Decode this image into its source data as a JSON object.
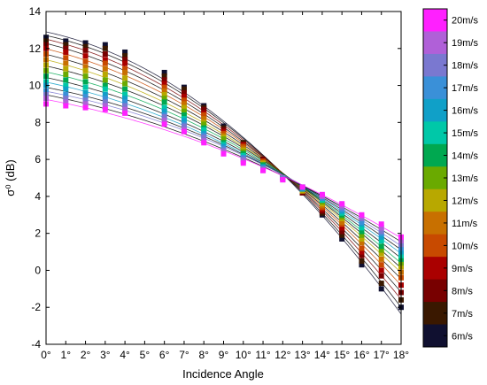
{
  "chart_data": {
    "type": "scatter",
    "title": "",
    "xlabel": "Incidence Angle",
    "ylabel": "σ⁰ (dB)",
    "xlim": [
      0,
      18
    ],
    "ylim": [
      -4,
      14
    ],
    "x_ticks": [
      "0°",
      "1°",
      "2°",
      "3°",
      "4°",
      "5°",
      "6°",
      "7°",
      "8°",
      "9°",
      "10°",
      "11°",
      "12°",
      "13°",
      "14°",
      "15°",
      "16°",
      "17°",
      "18°"
    ],
    "y_ticks": [
      "-4",
      "-2",
      "0",
      "2",
      "4",
      "6",
      "8",
      "10",
      "12",
      "14"
    ],
    "grid": false,
    "legend_position": "right colorbar",
    "x": [
      0,
      1,
      2,
      3,
      4,
      6,
      7,
      8,
      9,
      10,
      11,
      12,
      13,
      14,
      15,
      16,
      17,
      18
    ],
    "series": [
      {
        "name": "6m/s",
        "color": "#101030",
        "values": [
          12.6,
          12.4,
          12.3,
          12.2,
          11.8,
          10.7,
          9.9,
          8.9,
          7.8,
          6.9,
          6.0,
          5.0,
          4.2,
          3.0,
          1.7,
          0.3,
          -1.0,
          -2.0
        ]
      },
      {
        "name": "7m/s",
        "color": "#3a1800",
        "values": [
          12.4,
          12.2,
          12.1,
          12.0,
          11.6,
          10.5,
          9.8,
          8.8,
          7.7,
          6.9,
          6.0,
          5.0,
          4.2,
          3.1,
          1.9,
          0.5,
          -0.7,
          -1.6
        ]
      },
      {
        "name": "8m/s",
        "color": "#780000",
        "values": [
          12.2,
          12.0,
          11.9,
          11.7,
          11.4,
          10.3,
          9.6,
          8.7,
          7.6,
          6.8,
          6.0,
          5.0,
          4.2,
          3.2,
          2.1,
          0.8,
          -0.3,
          -1.2
        ]
      },
      {
        "name": "9m/s",
        "color": "#aa0000",
        "values": [
          12.0,
          11.8,
          11.6,
          11.4,
          11.2,
          10.1,
          9.4,
          8.5,
          7.5,
          6.8,
          5.9,
          5.0,
          4.3,
          3.3,
          2.3,
          1.0,
          0.0,
          -0.8
        ]
      },
      {
        "name": "10m/s",
        "color": "#c84a00",
        "values": [
          11.7,
          11.5,
          11.3,
          11.2,
          10.9,
          9.9,
          9.2,
          8.4,
          7.4,
          6.7,
          5.9,
          5.0,
          4.3,
          3.4,
          2.5,
          1.2,
          0.3,
          -0.4
        ]
      },
      {
        "name": "11m/s",
        "color": "#c87000",
        "values": [
          11.4,
          11.2,
          11.0,
          10.9,
          10.7,
          9.7,
          9.0,
          8.2,
          7.3,
          6.6,
          5.8,
          5.0,
          4.3,
          3.5,
          2.6,
          1.5,
          0.6,
          -0.1
        ]
      },
      {
        "name": "12m/s",
        "color": "#b8a800",
        "values": [
          11.1,
          10.9,
          10.8,
          10.6,
          10.4,
          9.5,
          8.8,
          8.0,
          7.2,
          6.5,
          5.8,
          5.0,
          4.3,
          3.6,
          2.8,
          1.7,
          0.9,
          0.2
        ]
      },
      {
        "name": "13m/s",
        "color": "#6aaa00",
        "values": [
          10.8,
          10.6,
          10.5,
          10.3,
          10.1,
          9.3,
          8.6,
          7.9,
          7.1,
          6.4,
          5.7,
          5.0,
          4.4,
          3.7,
          2.9,
          1.9,
          1.1,
          0.4
        ]
      },
      {
        "name": "14m/s",
        "color": "#00a850",
        "values": [
          10.5,
          10.3,
          10.2,
          10.0,
          9.8,
          9.1,
          8.4,
          7.7,
          6.9,
          6.3,
          5.7,
          5.0,
          4.4,
          3.8,
          3.0,
          2.1,
          1.3,
          0.6
        ]
      },
      {
        "name": "15m/s",
        "color": "#00c8a8",
        "values": [
          10.2,
          10.0,
          9.9,
          9.8,
          9.5,
          8.8,
          8.2,
          7.6,
          6.8,
          6.2,
          5.6,
          5.0,
          4.4,
          3.8,
          3.1,
          2.3,
          1.6,
          0.8
        ]
      },
      {
        "name": "16m/s",
        "color": "#10a0c8",
        "values": [
          10.0,
          9.8,
          9.6,
          9.5,
          9.3,
          8.6,
          8.1,
          7.4,
          6.7,
          6.1,
          5.6,
          5.0,
          4.4,
          3.9,
          3.2,
          2.5,
          1.8,
          1.0
        ]
      },
      {
        "name": "17m/s",
        "color": "#3a90d8",
        "values": [
          9.7,
          9.5,
          9.4,
          9.3,
          9.1,
          8.4,
          7.9,
          7.3,
          6.6,
          6.1,
          5.5,
          5.0,
          4.5,
          3.9,
          3.3,
          2.6,
          2.0,
          1.2
        ]
      },
      {
        "name": "18m/s",
        "color": "#7a78d0",
        "values": [
          9.5,
          9.3,
          9.2,
          9.1,
          8.9,
          8.3,
          7.8,
          7.2,
          6.5,
          6.0,
          5.5,
          5.0,
          4.5,
          4.0,
          3.4,
          2.8,
          2.1,
          1.4
        ]
      },
      {
        "name": "19m/s",
        "color": "#b060d8",
        "values": [
          9.3,
          9.1,
          9.0,
          8.9,
          8.7,
          8.1,
          7.6,
          7.0,
          6.4,
          5.9,
          5.4,
          4.9,
          4.5,
          4.0,
          3.5,
          2.9,
          2.3,
          1.6
        ]
      },
      {
        "name": "20m/s",
        "color": "#ff20ff",
        "values": [
          9.0,
          8.9,
          8.8,
          8.7,
          8.5,
          7.9,
          7.5,
          6.9,
          6.3,
          5.8,
          5.4,
          4.9,
          4.5,
          4.1,
          3.6,
          3.0,
          2.5,
          1.8
        ]
      }
    ],
    "colorbar_labels": [
      "20m/s",
      "19m/s",
      "18m/s",
      "17m/s",
      "16m/s",
      "15m/s",
      "14m/s",
      "13m/s",
      "12m/s",
      "11m/s",
      "10m/s",
      "9m/s",
      "8m/s",
      "7m/s",
      "6m/s"
    ],
    "colorbar_colors": [
      "#ff20ff",
      "#b060d8",
      "#7a78d0",
      "#3a90d8",
      "#10a0c8",
      "#00c8a8",
      "#00a850",
      "#6aaa00",
      "#b8a800",
      "#c87000",
      "#c84a00",
      "#aa0000",
      "#780000",
      "#3a1800",
      "#101030"
    ]
  }
}
